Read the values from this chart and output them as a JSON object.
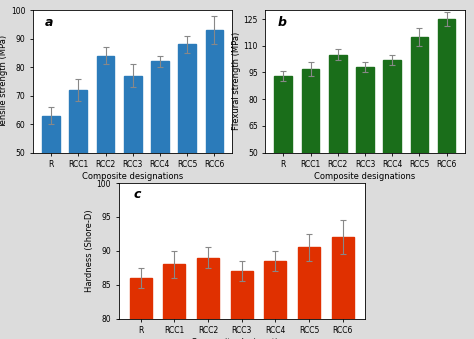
{
  "categories": [
    "R",
    "RCC1",
    "RCC2",
    "RCC3",
    "RCC4",
    "RCC5",
    "RCC6"
  ],
  "tensile_values": [
    63,
    72,
    84,
    77,
    82,
    88,
    93
  ],
  "tensile_errors": [
    3,
    4,
    3,
    4,
    2,
    3,
    5
  ],
  "tensile_ylim": [
    50,
    100
  ],
  "tensile_yticks": [
    50,
    60,
    70,
    80,
    90,
    100
  ],
  "tensile_ylabel": "Tensile strength (MPa)",
  "tensile_color": "#2b7bba",
  "flexural_values": [
    93,
    97,
    105,
    98,
    102,
    115,
    125
  ],
  "flexural_errors": [
    3,
    4,
    3,
    3,
    3,
    5,
    4
  ],
  "flexural_ylim": [
    50,
    130
  ],
  "flexural_yticks": [
    50,
    65,
    80,
    95,
    110,
    125
  ],
  "flexural_ylabel": "Flexural strength (MPa)",
  "flexural_color": "#1a6e1a",
  "hardness_values": [
    86,
    88,
    89,
    87,
    88.5,
    90.5,
    92
  ],
  "hardness_errors": [
    1.5,
    2,
    1.5,
    1.5,
    1.5,
    2,
    2.5
  ],
  "hardness_ylim": [
    80,
    100
  ],
  "hardness_yticks": [
    80,
    85,
    90,
    95,
    100
  ],
  "hardness_ylabel": "Hardness (Shore-D)",
  "hardness_color": "#e03000",
  "xlabel": "Composite designations",
  "label_a": "a",
  "label_b": "b",
  "label_c": "c",
  "bg_color": "#dcdcdc",
  "axes_bg": "#ffffff"
}
